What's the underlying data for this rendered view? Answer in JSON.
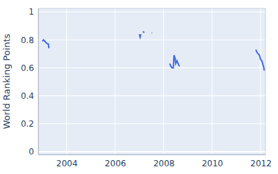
{
  "chart_data": {
    "type": "line",
    "y_label": "World Ranking Points",
    "color": "#4169e1",
    "grid": true,
    "x": [
      2003.0,
      2003.05,
      2003.1,
      2003.15,
      2003.22,
      2003.25,
      2003.27,
      null,
      2007.0,
      2007.03,
      2007.06,
      null,
      2007.15,
      2007.2,
      null,
      2007.5,
      2007.52,
      null,
      2008.25,
      2008.3,
      2008.35,
      2008.4,
      2008.43,
      2008.47,
      2008.5,
      2008.55,
      2008.6,
      2008.65,
      null,
      2011.8,
      2011.85,
      2011.9,
      2011.95,
      2012.0,
      2012.05,
      2012.1,
      2012.12,
      2012.15
    ],
    "values": [
      0.79,
      0.8,
      0.79,
      0.78,
      0.77,
      0.77,
      0.74,
      null,
      0.84,
      0.82,
      0.84,
      null,
      0.86,
      0.85,
      null,
      0.85,
      0.85,
      null,
      0.63,
      0.61,
      0.6,
      0.6,
      0.69,
      0.67,
      0.63,
      0.65,
      0.63,
      0.61,
      null,
      0.73,
      0.71,
      0.7,
      0.69,
      0.66,
      0.65,
      0.62,
      0.61,
      0.58
    ],
    "xlim": [
      2002.83,
      2012.2
    ],
    "xticks": [
      2004,
      2006,
      2008,
      2010,
      2012
    ],
    "ylim": [
      -0.02,
      1.025
    ],
    "yticks": [
      0,
      0.2,
      0.4,
      0.6,
      0.8,
      1
    ]
  }
}
